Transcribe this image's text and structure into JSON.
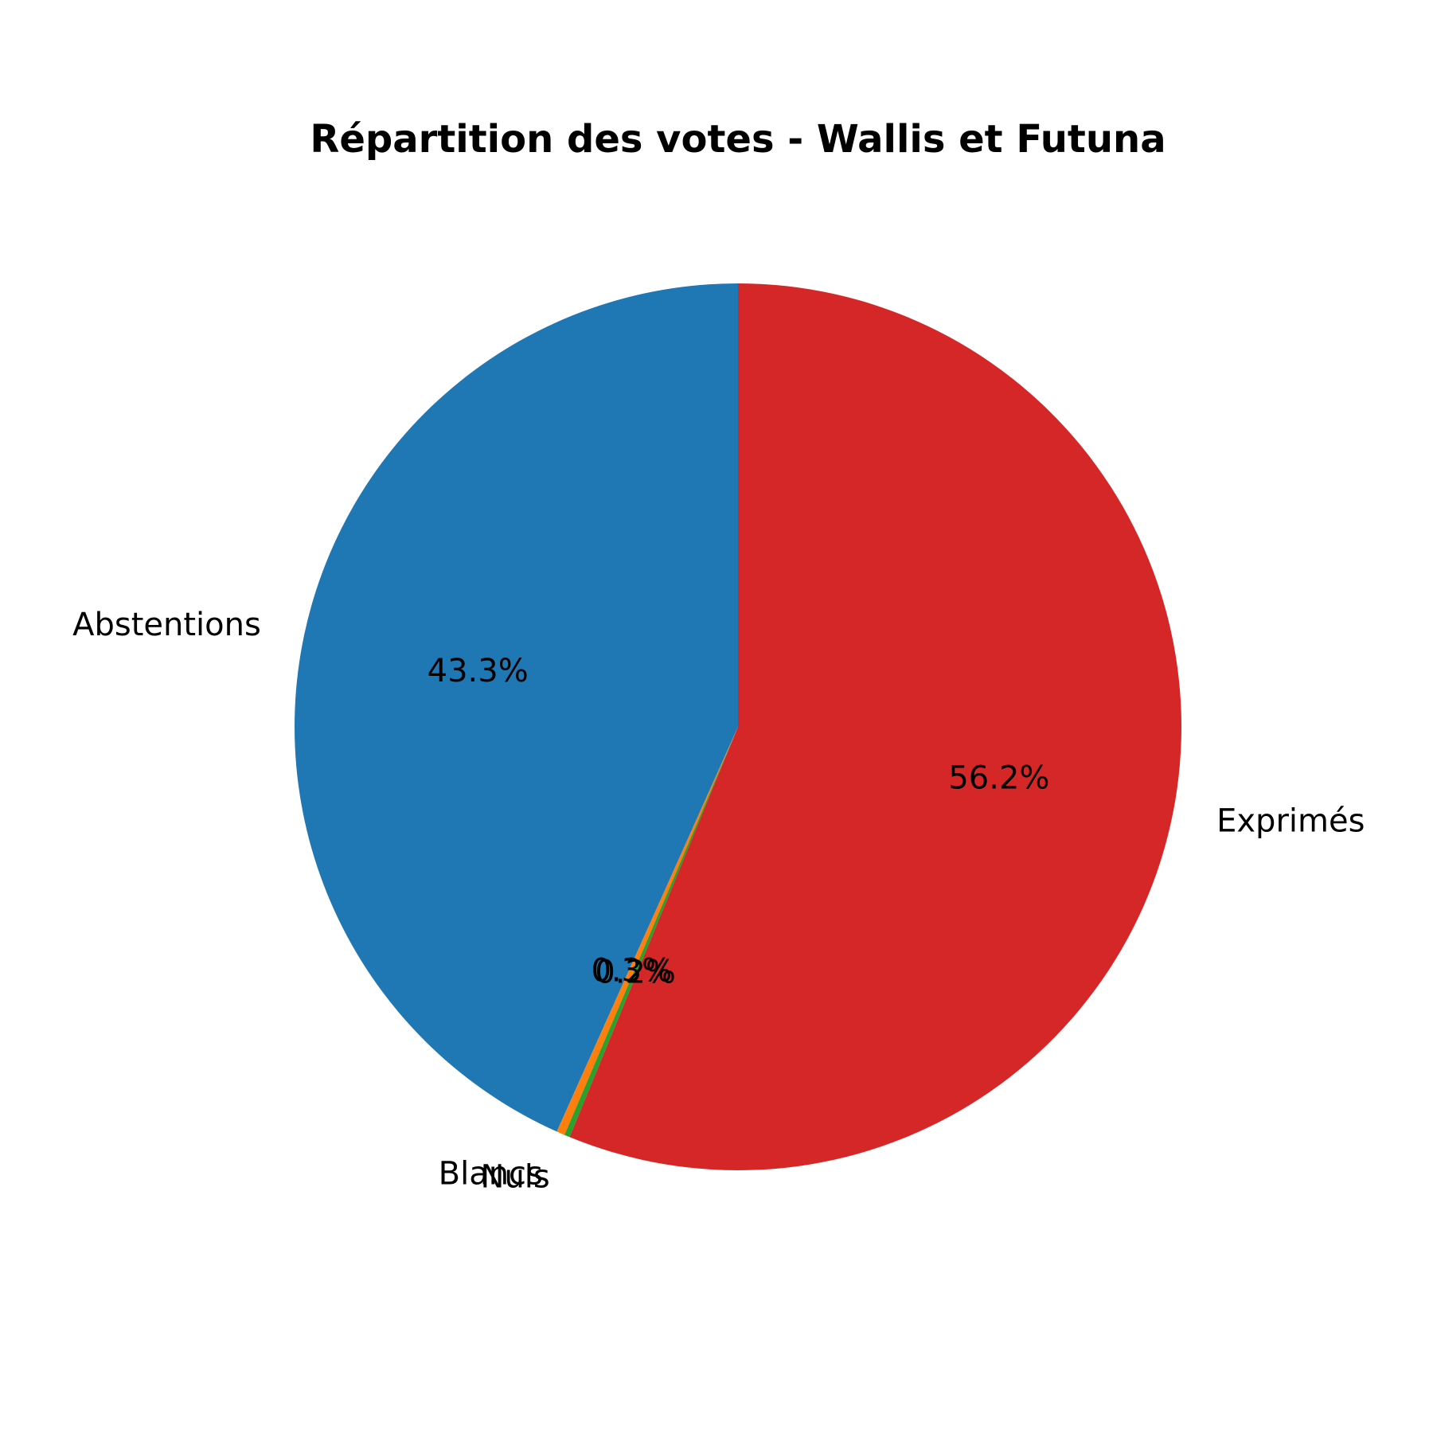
{
  "chart_data": {
    "type": "pie",
    "title": "Répartition des votes - Wallis et Futuna",
    "slices": [
      {
        "label": "Abstentions",
        "value": 43.3,
        "pct_label": "43.3%",
        "color": "#1f77b4"
      },
      {
        "label": "Blancs",
        "value": 0.3,
        "pct_label": "0.3%",
        "color": "#ff7f0e"
      },
      {
        "label": "Nuls",
        "value": 0.2,
        "pct_label": "0.2%",
        "color": "#2ca02c"
      },
      {
        "label": "Exprimés",
        "value": 56.2,
        "pct_label": "56.2%",
        "color": "#d62728"
      }
    ],
    "start_angle_deg": 90,
    "direction": "counterclockwise"
  }
}
